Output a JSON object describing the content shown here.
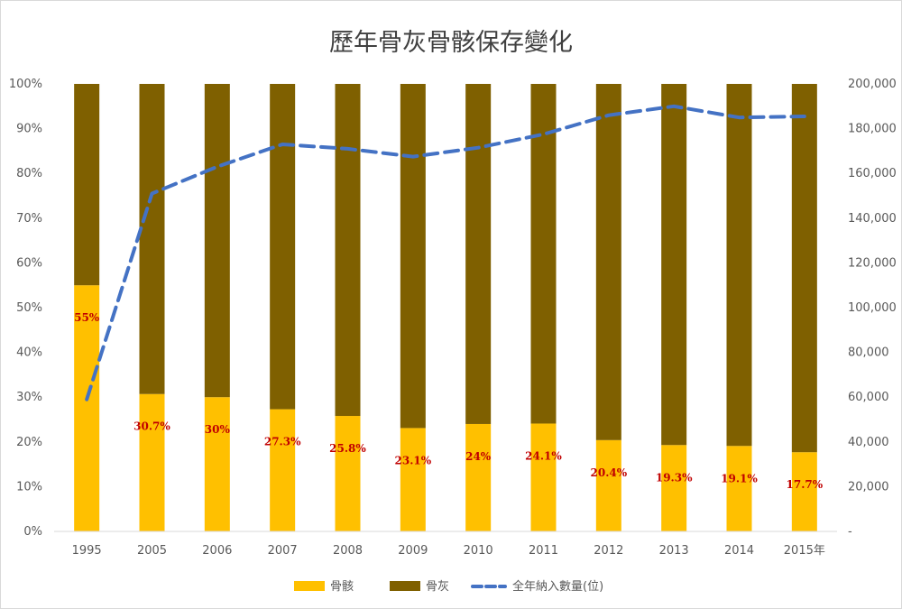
{
  "chart_data": {
    "type": "bar",
    "stacked": true,
    "title": "歷年骨灰骨骸保存變化",
    "categories": [
      "1995",
      "2005",
      "2006",
      "2007",
      "2008",
      "2009",
      "2010",
      "2011",
      "2012",
      "2013",
      "2014",
      "2015年"
    ],
    "series": [
      {
        "name": "骨骸",
        "color": "#ffc000",
        "values": [
          55,
          30.7,
          30,
          27.3,
          25.8,
          23.1,
          24,
          24.1,
          20.4,
          19.3,
          19.1,
          17.7
        ],
        "labels": [
          "55%",
          "30.7%",
          "30%",
          "27.3%",
          "25.8%",
          "23.1%",
          "24%",
          "24.1%",
          "20.4%",
          "19.3%",
          "19.1%",
          "17.7%"
        ]
      },
      {
        "name": "骨灰",
        "color": "#7f6000",
        "values": [
          45,
          69.3,
          70,
          72.7,
          74.2,
          76.9,
          76,
          75.9,
          79.6,
          80.7,
          80.9,
          82.3
        ]
      }
    ],
    "line_series": {
      "name": "全年納入數量(位)",
      "color": "#4472c4",
      "axis": "right",
      "values": [
        59000,
        151000,
        163000,
        173000,
        171000,
        167500,
        171500,
        177500,
        186000,
        190000,
        185000,
        185500
      ]
    },
    "left_axis": {
      "ylim": [
        0,
        100
      ],
      "ticks": [
        0,
        10,
        20,
        30,
        40,
        50,
        60,
        70,
        80,
        90,
        100
      ],
      "tick_labels": [
        "0%",
        "10%",
        "20%",
        "30%",
        "40%",
        "50%",
        "60%",
        "70%",
        "80%",
        "90%",
        "100%"
      ]
    },
    "right_axis": {
      "ylim": [
        0,
        200000
      ],
      "ticks": [
        0,
        20000,
        40000,
        60000,
        80000,
        100000,
        120000,
        140000,
        160000,
        180000,
        200000
      ],
      "tick_labels": [
        "-",
        "20,000",
        "40,000",
        "60,000",
        "80,000",
        "100,000",
        "120,000",
        "140,000",
        "160,000",
        "180,000",
        "200,000"
      ]
    },
    "legend": {
      "position": "bottom",
      "entries": [
        "骨骸",
        "骨灰",
        "全年納入數量(位)"
      ]
    },
    "grid": false
  }
}
